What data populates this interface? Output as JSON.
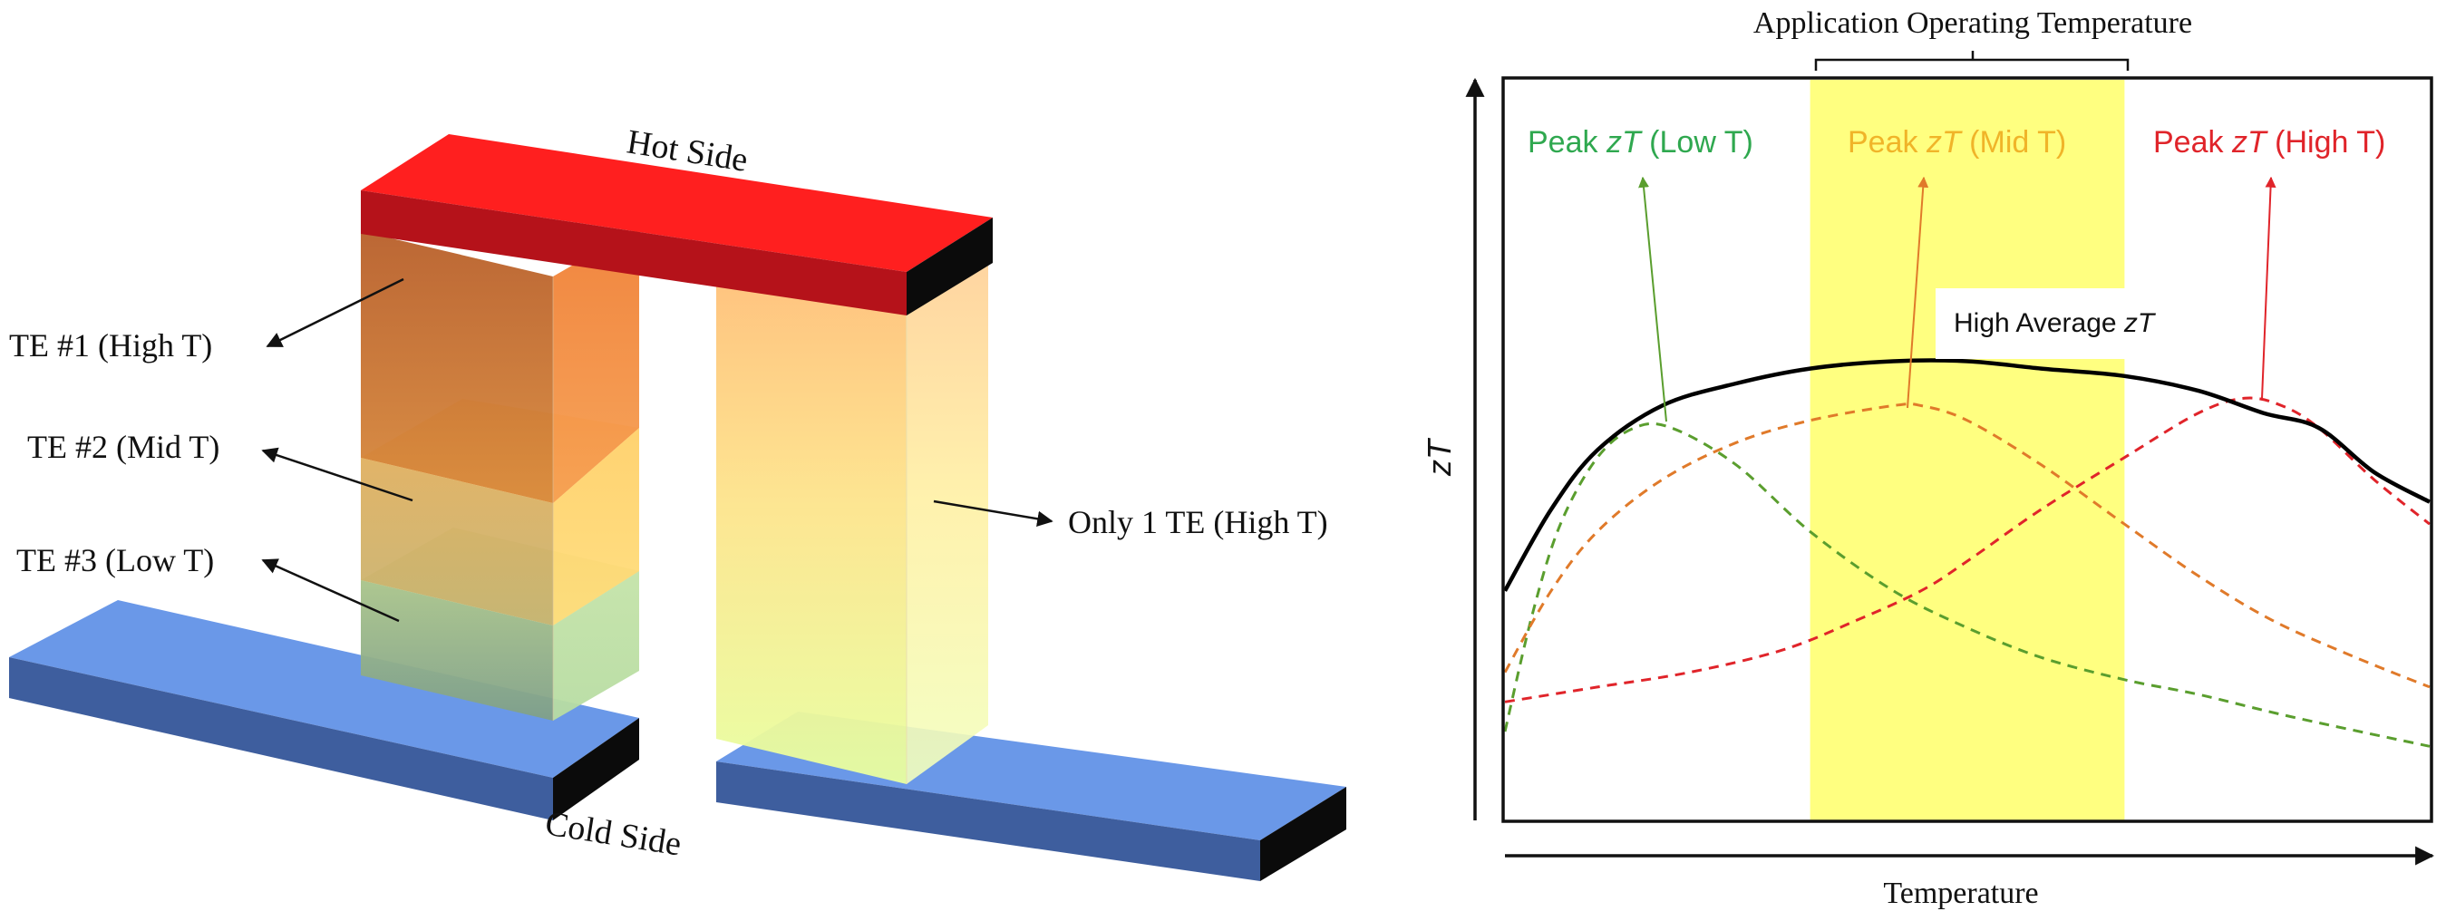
{
  "left_diagram": {
    "hot_side_label": "Hot Side",
    "cold_side_label": "Cold Side",
    "te1_label": "TE #1 (High T)",
    "te2_label": "TE #2 (Mid T)",
    "te3_label": "TE #3 (Low T)",
    "single_te_label": "Only 1 TE (High T)"
  },
  "chart": {
    "title": "Application Operating Temperature",
    "xlabel": "Temperature",
    "ylabel": "zT",
    "annotation_high_avg_prefix": "High Average ",
    "annotation_high_avg_italic": "zT",
    "peaks": [
      {
        "prefix": "Peak ",
        "italic": "zT",
        "suffix": " (Low T)",
        "color": "#2fa84f"
      },
      {
        "prefix": "Peak ",
        "italic": "zT",
        "suffix": " (Mid T)",
        "color": "#f0b429"
      },
      {
        "prefix": "Peak ",
        "italic": "zT",
        "suffix": " (High T)",
        "color": "#e0242a"
      }
    ]
  },
  "chart_data": {
    "type": "line",
    "title": "Application Operating Temperature",
    "xlabel": "Temperature",
    "ylabel": "zT",
    "xlim": [
      0,
      1
    ],
    "ylim": [
      0,
      1
    ],
    "highlight_band": {
      "x": [
        0.33,
        0.67
      ],
      "color": "#ffff80"
    },
    "series": [
      {
        "name": "High Average zT",
        "color": "#000000",
        "dash": "solid",
        "x": [
          0.0,
          0.05,
          0.1,
          0.17,
          0.25,
          0.33,
          0.42,
          0.5,
          0.58,
          0.67,
          0.75,
          0.82,
          0.88,
          0.94,
          1.0
        ],
        "y": [
          0.31,
          0.42,
          0.5,
          0.56,
          0.59,
          0.61,
          0.62,
          0.62,
          0.61,
          0.6,
          0.58,
          0.55,
          0.53,
          0.47,
          0.43
        ]
      },
      {
        "name": "Peak zT (Low T)",
        "color": "#5a9e2e",
        "dash": "dashed",
        "x": [
          0.0,
          0.03,
          0.06,
          0.1,
          0.14,
          0.18,
          0.25,
          0.33,
          0.42,
          0.5,
          0.58,
          0.67,
          0.75,
          0.85,
          1.0
        ],
        "y": [
          0.12,
          0.28,
          0.4,
          0.49,
          0.53,
          0.53,
          0.48,
          0.39,
          0.31,
          0.26,
          0.22,
          0.19,
          0.17,
          0.14,
          0.1
        ]
      },
      {
        "name": "Peak zT (Mid T)",
        "color": "#e07a2a",
        "dash": "dashed",
        "x": [
          0.0,
          0.05,
          0.1,
          0.17,
          0.25,
          0.33,
          0.42,
          0.45,
          0.5,
          0.58,
          0.67,
          0.75,
          0.83,
          0.92,
          1.0
        ],
        "y": [
          0.2,
          0.31,
          0.39,
          0.46,
          0.51,
          0.54,
          0.56,
          0.56,
          0.54,
          0.48,
          0.4,
          0.33,
          0.27,
          0.22,
          0.18
        ]
      },
      {
        "name": "Peak zT (High T)",
        "color": "#e0242a",
        "dash": "dashed",
        "x": [
          0.0,
          0.1,
          0.2,
          0.3,
          0.38,
          0.45,
          0.5,
          0.58,
          0.67,
          0.75,
          0.8,
          0.84,
          0.88,
          0.94,
          1.0
        ],
        "y": [
          0.16,
          0.18,
          0.2,
          0.23,
          0.27,
          0.31,
          0.35,
          0.42,
          0.49,
          0.55,
          0.57,
          0.56,
          0.53,
          0.46,
          0.4
        ]
      }
    ]
  }
}
